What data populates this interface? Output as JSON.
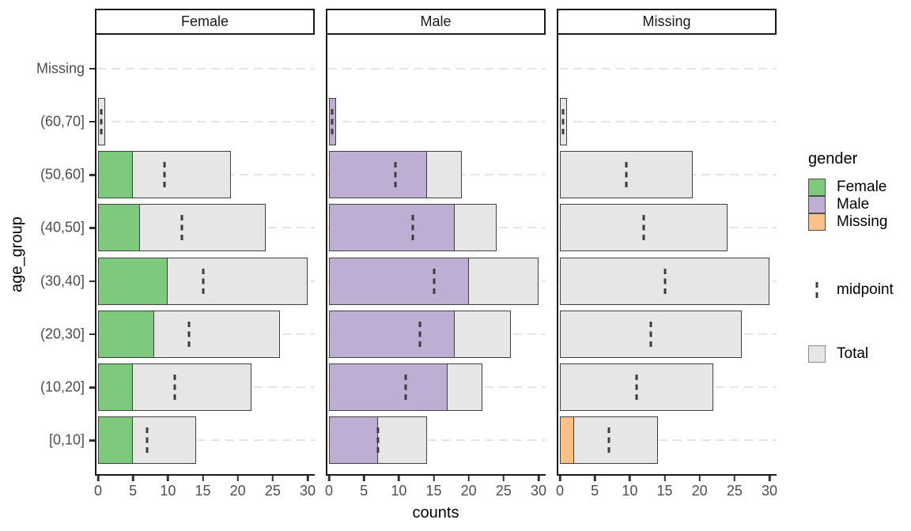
{
  "colors": {
    "female": "#7FC97F",
    "male": "#BEAED4",
    "missing": "#FDC086",
    "total_fill": "#E6E6E6",
    "bar_border": "#404040",
    "gridline": "#E4E4E4",
    "axis_line": "#1A1A1A",
    "tick_label": "#4D4D4D",
    "midpoint_marker": "#3C3C3C"
  },
  "legend": {
    "gender_title": "gender",
    "gender_items": [
      {
        "label": "Female",
        "color_key": "female"
      },
      {
        "label": "Male",
        "color_key": "male"
      },
      {
        "label": "Missing",
        "color_key": "missing"
      }
    ],
    "midpoint_label": "midpoint",
    "total_label": "Total"
  },
  "chart_data": {
    "type": "bar",
    "orientation": "horizontal",
    "description": "Faceted horizontal bar chart: gray Total bars with gender-count overlay bars and dashed midpoint markers (midpoint = total/2), one facet per gender.",
    "facets": [
      "Female",
      "Male",
      "Missing"
    ],
    "categories_top_to_bottom": [
      "Missing",
      "(60,70]",
      "(50,60]",
      "(40,50]",
      "(30,40]",
      "(20,30]",
      "(10,20]",
      "[0,10]"
    ],
    "xlabel": "counts",
    "ylabel": "age_group",
    "xlim": [
      0,
      30
    ],
    "x_ticks": [
      0,
      5,
      10,
      15,
      20,
      25,
      30
    ],
    "grid": "horizontal-dashed",
    "legend_position": "right",
    "rows": [
      {
        "age_group": "Missing",
        "total": 0,
        "midpoint": null,
        "Female": 0,
        "Male": 0,
        "Missing": 0
      },
      {
        "age_group": "(60,70]",
        "total": 1,
        "midpoint": 0.5,
        "Female": 0,
        "Male": 1,
        "Missing": 0
      },
      {
        "age_group": "(50,60]",
        "total": 19,
        "midpoint": 9.5,
        "Female": 5,
        "Male": 14,
        "Missing": 0
      },
      {
        "age_group": "(40,50]",
        "total": 24,
        "midpoint": 12,
        "Female": 6,
        "Male": 18,
        "Missing": 0
      },
      {
        "age_group": "(30,40]",
        "total": 30,
        "midpoint": 15,
        "Female": 10,
        "Male": 20,
        "Missing": 0
      },
      {
        "age_group": "(20,30]",
        "total": 26,
        "midpoint": 13,
        "Female": 8,
        "Male": 18,
        "Missing": 0
      },
      {
        "age_group": "(10,20]",
        "total": 22,
        "midpoint": 11,
        "Female": 5,
        "Male": 17,
        "Missing": 0
      },
      {
        "age_group": "[0,10]",
        "total": 14,
        "midpoint": 7,
        "Female": 5,
        "Male": 7,
        "Missing": 2
      }
    ]
  }
}
